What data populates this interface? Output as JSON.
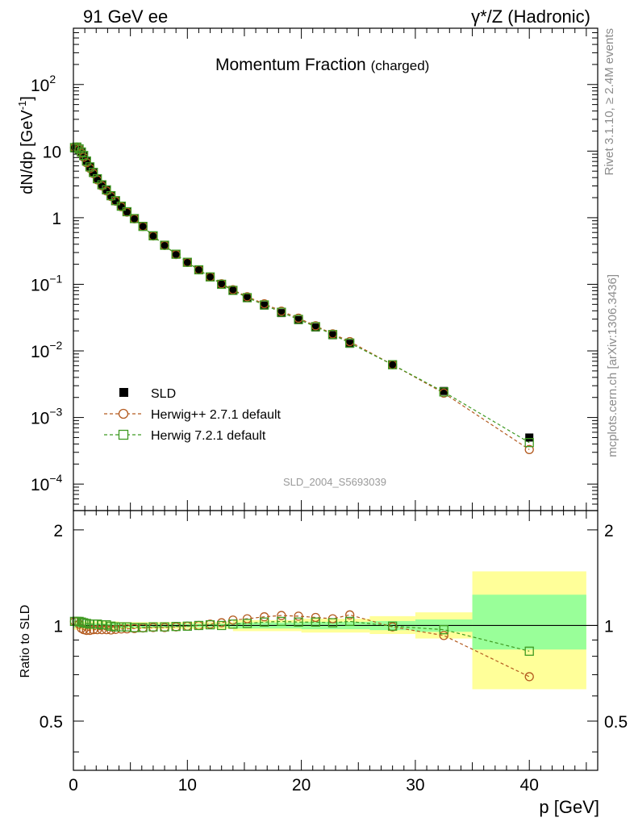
{
  "header": {
    "left": "91 GeV ee",
    "right": "γ*/Z (Hadronic)"
  },
  "side_labels": {
    "rivet": "Rivet 3.1.10, ≥ 2.4M events",
    "mcplots": "mcplots.cern.ch [arXiv:1306.3436]"
  },
  "chart_data": [
    {
      "type": "scatter",
      "panel": "main",
      "title": "Momentum Fraction",
      "title_sub": "(charged)",
      "watermark": "SLD_2004_S5693039",
      "ylabel_main": "dN/dp [GeV",
      "ylabel_sup": "-1",
      "ylabel_end": "]",
      "yscale": "log",
      "xlim": [
        0,
        46
      ],
      "ylim": [
        4e-05,
        700
      ],
      "yticks": [
        {
          "v": 0.0001,
          "base": "10",
          "exp": "−4"
        },
        {
          "v": 0.001,
          "base": "10",
          "exp": "−3"
        },
        {
          "v": 0.01,
          "base": "10",
          "exp": "−2"
        },
        {
          "v": 0.1,
          "base": "10",
          "exp": "−1"
        },
        {
          "v": 1,
          "base": "1",
          "exp": ""
        },
        {
          "v": 10,
          "base": "10",
          "exp": ""
        },
        {
          "v": 100,
          "base": "10",
          "exp": "2"
        }
      ],
      "legend_position": "lower-left",
      "colors": {
        "data": "#000000",
        "herwigpp": "#b35a1f",
        "herwig7": "#3f9a22"
      },
      "legend": [
        {
          "label": "SLD",
          "marker": "square-filled",
          "color": "#000000"
        },
        {
          "label": "Herwig++ 2.7.1 default",
          "marker": "circle-open",
          "color": "#b35a1f"
        },
        {
          "label": "Herwig 7.2.1 default",
          "marker": "square-open",
          "color": "#3f9a22"
        }
      ],
      "x": [
        0.1,
        0.3,
        0.5,
        0.7,
        0.9,
        1.15,
        1.45,
        1.75,
        2.1,
        2.5,
        2.9,
        3.3,
        3.7,
        4.2,
        4.7,
        5.35,
        6.1,
        7.0,
        8.0,
        9.0,
        10.0,
        11.0,
        12.0,
        13.0,
        14.0,
        15.25,
        16.75,
        18.25,
        19.75,
        21.25,
        22.75,
        24.25,
        28.0,
        32.5,
        40.0
      ],
      "series": [
        {
          "name": "SLD",
          "values": [
            11.0,
            11.2,
            10.5,
            9.5,
            8.4,
            7.0,
            5.7,
            4.7,
            3.8,
            3.1,
            2.6,
            2.15,
            1.82,
            1.5,
            1.24,
            0.98,
            0.75,
            0.54,
            0.39,
            0.285,
            0.215,
            0.165,
            0.128,
            0.1,
            0.08,
            0.062,
            0.048,
            0.037,
            0.029,
            0.0225,
            0.0172,
            0.0128,
            0.0062,
            0.0025,
            0.0005
          ]
        },
        {
          "name": "Herwig++ 2.7.1 default",
          "values": [
            11.3,
            11.5,
            10.6,
            9.3,
            8.1,
            6.7,
            5.5,
            4.6,
            3.7,
            3.0,
            2.52,
            2.08,
            1.77,
            1.46,
            1.21,
            0.96,
            0.74,
            0.53,
            0.383,
            0.28,
            0.213,
            0.165,
            0.129,
            0.102,
            0.083,
            0.065,
            0.051,
            0.0395,
            0.031,
            0.0238,
            0.018,
            0.0138,
            0.0062,
            0.00232,
            0.00033
          ]
        },
        {
          "name": "Herwig 7.2.1 default",
          "values": [
            11.3,
            11.5,
            10.8,
            9.7,
            8.6,
            7.1,
            5.8,
            4.8,
            3.85,
            3.12,
            2.62,
            2.14,
            1.8,
            1.49,
            1.23,
            0.97,
            0.74,
            0.535,
            0.386,
            0.283,
            0.214,
            0.165,
            0.129,
            0.1,
            0.081,
            0.063,
            0.049,
            0.038,
            0.0297,
            0.0231,
            0.0176,
            0.0131,
            0.0062,
            0.00242,
            0.00042
          ]
        }
      ]
    },
    {
      "type": "scatter",
      "panel": "ratio",
      "ylabel": "Ratio to SLD",
      "xlabel": "p [GeV]",
      "yscale": "log",
      "xlim": [
        0,
        46
      ],
      "ylim": [
        0.35,
        2.3
      ],
      "yticks": [
        0.5,
        1,
        2
      ],
      "xticks": [
        0,
        10,
        20,
        30,
        40
      ],
      "bands": [
        {
          "x0": 0,
          "x1": 4,
          "yellow": [
            0.97,
            1.03
          ],
          "green": [
            0.985,
            1.015
          ]
        },
        {
          "x0": 4,
          "x1": 14,
          "yellow": [
            0.975,
            1.025
          ],
          "green": [
            0.988,
            1.012
          ]
        },
        {
          "x0": 14,
          "x1": 20,
          "yellow": [
            0.96,
            1.04
          ],
          "green": [
            0.978,
            1.022
          ]
        },
        {
          "x0": 20,
          "x1": 26,
          "yellow": [
            0.95,
            1.05
          ],
          "green": [
            0.973,
            1.027
          ]
        },
        {
          "x0": 26,
          "x1": 30,
          "yellow": [
            0.94,
            1.07
          ],
          "green": [
            0.967,
            1.033
          ]
        },
        {
          "x0": 30,
          "x1": 35,
          "yellow": [
            0.91,
            1.1
          ],
          "green": [
            0.955,
            1.045
          ]
        },
        {
          "x0": 35,
          "x1": 45,
          "yellow": [
            0.63,
            1.48
          ],
          "green": [
            0.84,
            1.25
          ]
        }
      ],
      "series": [
        {
          "name": "Herwig++ 2.7.1 default",
          "values": [
            1.03,
            1.03,
            1.01,
            0.98,
            0.97,
            0.965,
            0.965,
            0.97,
            0.97,
            0.97,
            0.97,
            0.968,
            0.972,
            0.975,
            0.976,
            0.978,
            0.982,
            0.985,
            0.985,
            0.99,
            0.995,
            1.0,
            1.01,
            1.02,
            1.04,
            1.05,
            1.065,
            1.075,
            1.07,
            1.06,
            1.05,
            1.08,
            0.99,
            0.93,
            0.69
          ]
        },
        {
          "name": "Herwig 7.2.1 default",
          "values": [
            1.03,
            1.03,
            1.03,
            1.025,
            1.02,
            1.015,
            1.01,
            1.01,
            1.01,
            1.005,
            1.005,
            0.995,
            0.99,
            0.99,
            0.99,
            0.985,
            0.985,
            0.99,
            0.99,
            0.993,
            0.995,
            1.0,
            1.005,
            1.0,
            1.01,
            1.015,
            1.025,
            1.03,
            1.025,
            1.025,
            1.02,
            1.03,
            0.995,
            0.97,
            0.83
          ]
        }
      ]
    }
  ]
}
